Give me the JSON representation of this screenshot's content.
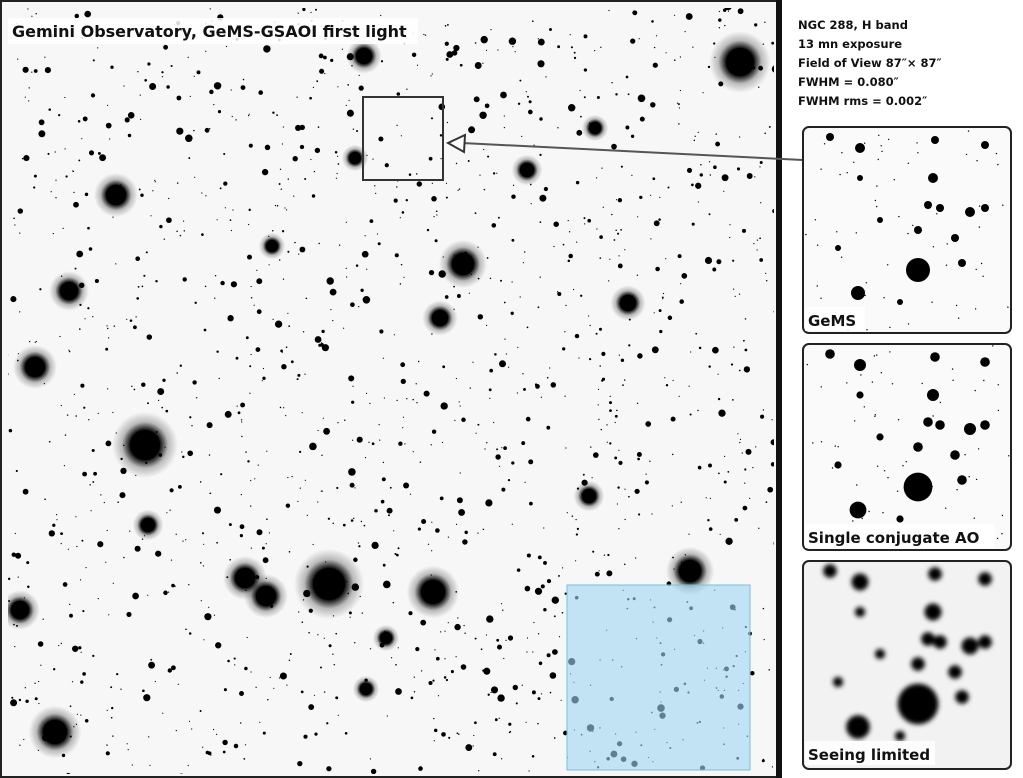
{
  "header": {
    "title": "Gemini Observatory, GeMS-GSAOI first light"
  },
  "info": [
    "NGC 288, H band",
    "13 mn exposure",
    "Field of View 87″× 87″",
    "FWHM = 0.080″",
    "FWHM rms = 0.002″"
  ],
  "insets": [
    {
      "label": "GeMS"
    },
    {
      "label": "Single conjugate AO"
    },
    {
      "label": "Seeing limited"
    }
  ]
}
